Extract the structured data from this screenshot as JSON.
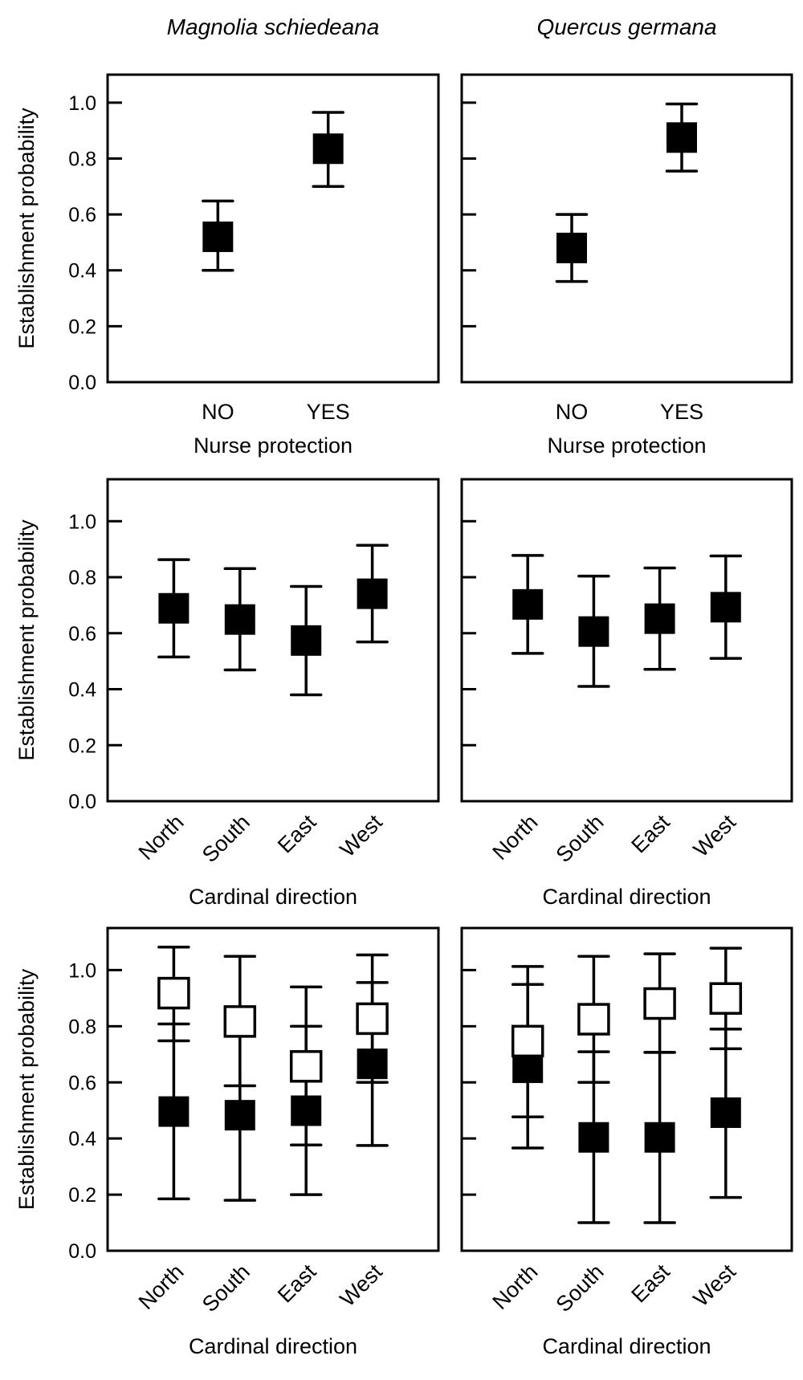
{
  "chart_data": [
    {
      "type": "scatter",
      "panel": "row1-left",
      "title": "Magnolia schiedeana",
      "xlabel": "Nurse protection",
      "ylabel": "Establishment probability",
      "categories": [
        "NO",
        "YES"
      ],
      "ylim": [
        0,
        1.1
      ],
      "yticks": [
        "0.0",
        "0.2",
        "0.4",
        "0.6",
        "0.8",
        "1.0"
      ],
      "series": [
        {
          "name": "estimate",
          "fill": "#000000",
          "values": [
            0.52,
            0.835
          ],
          "upper": [
            0.648,
            0.965
          ],
          "lower": [
            0.4,
            0.7
          ]
        }
      ]
    },
    {
      "type": "scatter",
      "panel": "row1-right",
      "title": "Quercus germana",
      "xlabel": "Nurse protection",
      "ylabel": "",
      "categories": [
        "NO",
        "YES"
      ],
      "ylim": [
        0,
        1.1
      ],
      "yticks": [],
      "series": [
        {
          "name": "estimate",
          "fill": "#000000",
          "values": [
            0.48,
            0.875
          ],
          "upper": [
            0.6,
            0.995
          ],
          "lower": [
            0.36,
            0.755
          ]
        }
      ]
    },
    {
      "type": "scatter",
      "panel": "row2-left",
      "title": "",
      "xlabel": "Cardinal direction",
      "ylabel": "Establishment probability",
      "categories": [
        "North",
        "South",
        "East",
        "West"
      ],
      "ylim": [
        0,
        1.15
      ],
      "yticks": [
        "0.0",
        "0.2",
        "0.4",
        "0.6",
        "0.8",
        "1.0"
      ],
      "series": [
        {
          "name": "estimate",
          "fill": "#000000",
          "values": [
            0.689,
            0.649,
            0.574,
            0.741
          ],
          "upper": [
            0.863,
            0.831,
            0.767,
            0.914
          ],
          "lower": [
            0.515,
            0.469,
            0.38,
            0.569
          ]
        }
      ]
    },
    {
      "type": "scatter",
      "panel": "row2-right",
      "title": "",
      "xlabel": "Cardinal direction",
      "ylabel": "",
      "categories": [
        "North",
        "South",
        "East",
        "West"
      ],
      "ylim": [
        0,
        1.15
      ],
      "yticks": [],
      "series": [
        {
          "name": "estimate",
          "fill": "#000000",
          "values": [
            0.703,
            0.606,
            0.652,
            0.693
          ],
          "upper": [
            0.878,
            0.804,
            0.833,
            0.876
          ],
          "lower": [
            0.528,
            0.41,
            0.471,
            0.51
          ]
        }
      ]
    },
    {
      "type": "scatter",
      "panel": "row3-left",
      "title": "",
      "xlabel": "Cardinal direction",
      "ylabel": "Establishment probability",
      "categories": [
        "North",
        "South",
        "East",
        "West"
      ],
      "ylim": [
        0,
        1.15
      ],
      "yticks": [
        "0.0",
        "0.2",
        "0.4",
        "0.6",
        "0.8",
        "1.0"
      ],
      "series": [
        {
          "name": "filled",
          "fill": "#000000",
          "values": [
            0.496,
            0.483,
            0.499,
            0.666
          ],
          "upper": [
            0.808,
            0.78,
            0.8,
            0.956
          ],
          "lower": [
            0.185,
            0.18,
            0.2,
            0.375
          ]
        },
        {
          "name": "open",
          "fill": "#ffffff",
          "values": [
            0.918,
            0.817,
            0.657,
            0.827
          ],
          "upper": [
            1.082,
            1.049,
            0.94,
            1.054
          ],
          "lower": [
            0.748,
            0.588,
            0.377,
            0.6
          ]
        }
      ]
    },
    {
      "type": "scatter",
      "panel": "row3-right",
      "title": "",
      "xlabel": "Cardinal direction",
      "ylabel": "",
      "categories": [
        "North",
        "South",
        "East",
        "West"
      ],
      "ylim": [
        0,
        1.15
      ],
      "yticks": [],
      "series": [
        {
          "name": "filled",
          "fill": "#000000",
          "values": [
            0.652,
            0.404,
            0.404,
            0.492
          ],
          "upper": [
            0.949,
            0.709,
            0.707,
            0.79
          ],
          "lower": [
            0.366,
            0.1,
            0.1,
            0.19
          ]
        },
        {
          "name": "open",
          "fill": "#ffffff",
          "values": [
            0.747,
            0.825,
            0.881,
            0.899
          ],
          "upper": [
            1.013,
            1.049,
            1.058,
            1.078
          ],
          "lower": [
            0.477,
            0.6,
            0.707,
            0.72
          ]
        }
      ]
    }
  ]
}
